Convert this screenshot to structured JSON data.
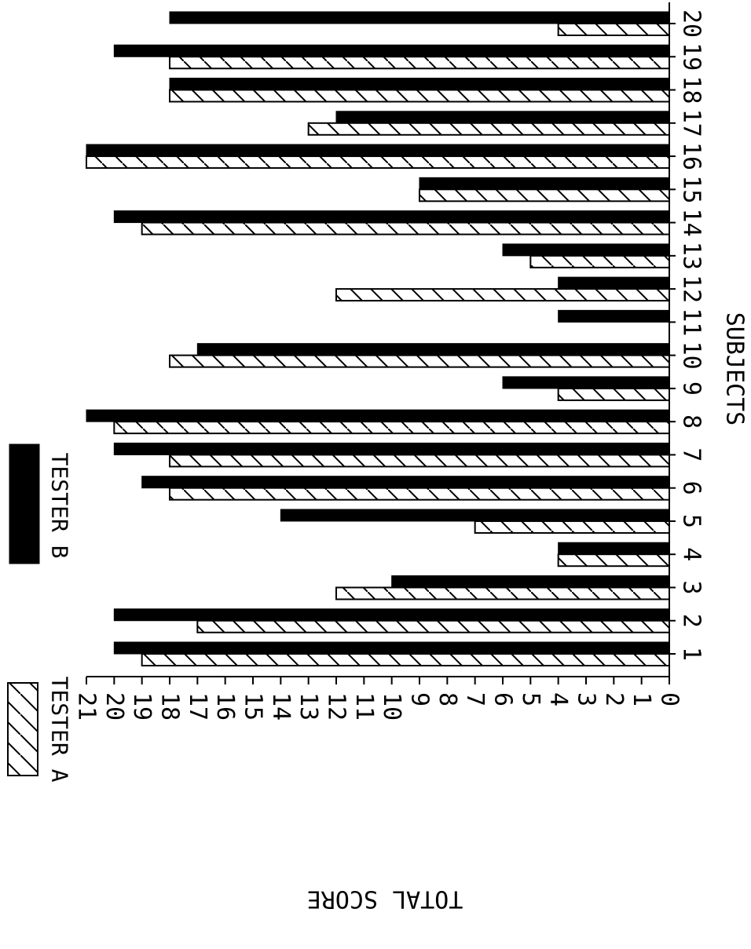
{
  "chart_data": {
    "type": "bar",
    "orientation": "rotated 90 degrees clockwise (bars extend leftward from the baseline on the right)",
    "title": "",
    "xlabel": "SUBJECTS",
    "ylabel": "TOTAL SCORE",
    "categories": [
      "1",
      "2",
      "3",
      "4",
      "5",
      "6",
      "7",
      "8",
      "9",
      "10",
      "11",
      "12",
      "13",
      "14",
      "15",
      "16",
      "17",
      "18",
      "19",
      "20"
    ],
    "ylim": [
      0,
      21
    ],
    "yticks": [
      "0",
      "1",
      "2",
      "3",
      "4",
      "5",
      "6",
      "7",
      "8",
      "9",
      "10",
      "11",
      "12",
      "13",
      "14",
      "15",
      "16",
      "17",
      "18",
      "19",
      "20",
      "21"
    ],
    "grid": false,
    "legend_position": "left",
    "series": [
      {
        "name": "TESTER A",
        "pattern": "hatched",
        "values": [
          19,
          17,
          12,
          4,
          7,
          18,
          18,
          20,
          4,
          18,
          0,
          12,
          5,
          19,
          9,
          21,
          13,
          18,
          18,
          4
        ]
      },
      {
        "name": "TESTER B",
        "pattern": "solid",
        "values": [
          20,
          20,
          10,
          4,
          14,
          19,
          20,
          21,
          6,
          17,
          4,
          4,
          6,
          20,
          9,
          21,
          12,
          18,
          20,
          18
        ]
      }
    ],
    "colors": {
      "solid": "#000000",
      "hatch": "#000000",
      "background": "#ffffff"
    }
  }
}
